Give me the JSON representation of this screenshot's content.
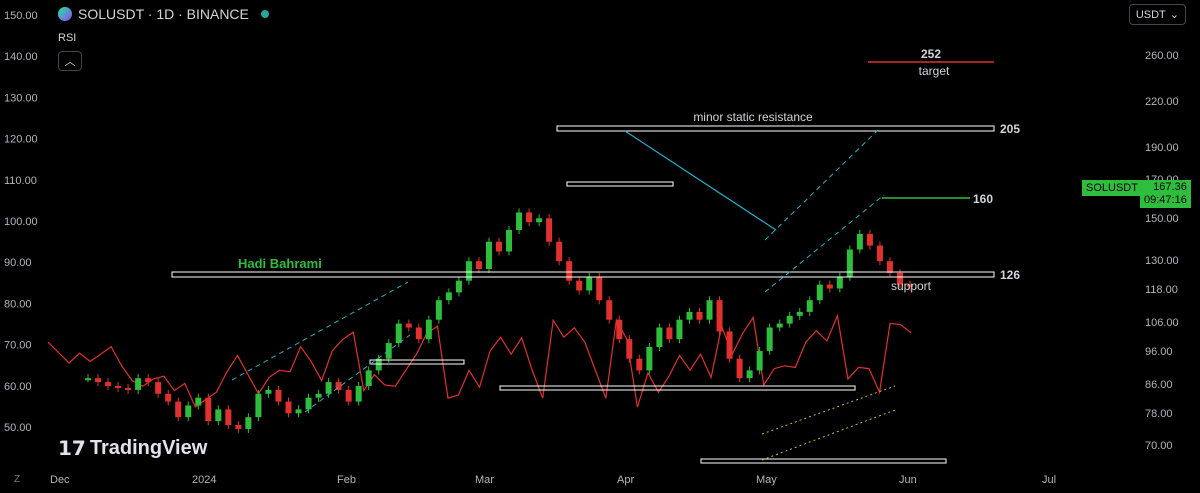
{
  "header": {
    "symbol_line": "SOLUSDT · 1D · BINANCE",
    "indicator": "RSI",
    "currency": "USDT"
  },
  "watermark": "TradingView",
  "price_tag": {
    "symbol": "SOLUSDT",
    "price": "167.36",
    "countdown": "09:47:16"
  },
  "colors": {
    "up": "#2ebd3c",
    "down": "#e0312f",
    "rsi": "#e0312f",
    "trend": "#27b0c9",
    "bg": "#000000"
  },
  "chart_data": {
    "type": "line",
    "series": [
      {
        "values": [
          120,
          118,
          116,
          115,
          114,
          120,
          118,
          112,
          108,
          100,
          106,
          110,
          98,
          104,
          96,
          94,
          100,
          112,
          114,
          108,
          102,
          104,
          110,
          112,
          118,
          114,
          108,
          116,
          124,
          130,
          138,
          148,
          146,
          140,
          150,
          160,
          164,
          170,
          180,
          176,
          190,
          185,
          196,
          205,
          200,
          202,
          190,
          180,
          170,
          165,
          172,
          160,
          150,
          140,
          130,
          124,
          136,
          146,
          140,
          150,
          154,
          150,
          160,
          144,
          130,
          120,
          124,
          134,
          146,
          148,
          152,
          154,
          160,
          168,
          166,
          172,
          186,
          194,
          188,
          180,
          174,
          168,
          167
        ],
        "x_pixels_hidden": true
      }
    ],
    "left_axis_ticks": [
      "150.00",
      "140.00",
      "130.00",
      "120.00",
      "110.00",
      "100.00",
      "90.00",
      "80.00",
      "70.00",
      "60.00",
      "50.00"
    ],
    "right_axis_ticks": [
      "260.00",
      "220.00",
      "190.00",
      "170.00",
      "150.00",
      "130.00",
      "118.00",
      "106.00",
      "96.00",
      "86.00",
      "78.00",
      "70.00"
    ],
    "x_ticks": [
      "Dec",
      "2024",
      "Feb",
      "Mar",
      "Apr",
      "May",
      "Jun",
      "Jul"
    ],
    "annotations": {
      "target_value": "252",
      "target_label": "target",
      "resistance_label": "minor static resistance",
      "resistance_value": "205",
      "level_160": "160",
      "support_label": "support",
      "support_value": "126",
      "author": "Hadi Bahrami"
    },
    "z_label": "Z"
  }
}
